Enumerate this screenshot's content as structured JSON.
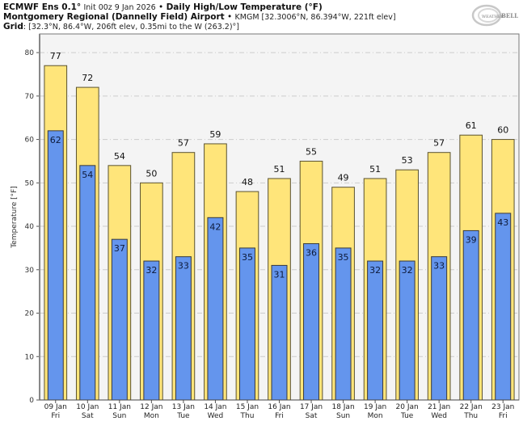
{
  "header": {
    "model": "ECMWF Ens 0.1°",
    "init": "Init 00z 9 Jan 2026",
    "sep": " • ",
    "product": "Daily High/Low Temperature (°F)",
    "station": "Montgomery Regional (Dannelly Field) Airport",
    "station_info": "KMGM [32.3006°N, 86.394°W, 221ft elev]",
    "grid_label": "Grid",
    "grid_info": ": [32.3°N, 86.4°W, 206ft elev, 0.35mi to the W (263.2)°]"
  },
  "logo": {
    "text": "WeatherBELL",
    "icon": "weatherbell-logo-icon"
  },
  "colors": {
    "high_fill": "#ffe57a",
    "low_fill": "#6495ed",
    "bar_stroke": "#5a5230",
    "plot_bg": "#f4f4f4",
    "grid": "#cccccc"
  },
  "chart_data": {
    "type": "bar",
    "title": "Daily High/Low Temperature (°F)",
    "xlabel": "",
    "ylabel": "Temperature [°F]",
    "ylim": [
      0,
      84.3
    ],
    "yticks": [
      0,
      10,
      20,
      30,
      40,
      50,
      60,
      70,
      80
    ],
    "grid": true,
    "categories": [
      {
        "date": "09 Jan",
        "day": "Fri"
      },
      {
        "date": "10 Jan",
        "day": "Sat"
      },
      {
        "date": "11 Jan",
        "day": "Sun"
      },
      {
        "date": "12 Jan",
        "day": "Mon"
      },
      {
        "date": "13 Jan",
        "day": "Tue"
      },
      {
        "date": "14 Jan",
        "day": "Wed"
      },
      {
        "date": "15 Jan",
        "day": "Thu"
      },
      {
        "date": "16 Jan",
        "day": "Fri"
      },
      {
        "date": "17 Jan",
        "day": "Sat"
      },
      {
        "date": "18 Jan",
        "day": "Sun"
      },
      {
        "date": "19 Jan",
        "day": "Mon"
      },
      {
        "date": "20 Jan",
        "day": "Tue"
      },
      {
        "date": "21 Jan",
        "day": "Wed"
      },
      {
        "date": "22 Jan",
        "day": "Thu"
      },
      {
        "date": "23 Jan",
        "day": "Fri"
      }
    ],
    "series": [
      {
        "name": "High",
        "values": [
          77,
          72,
          54,
          50,
          57,
          59,
          48,
          51,
          55,
          49,
          51,
          53,
          57,
          61,
          60
        ]
      },
      {
        "name": "Low",
        "values": [
          62,
          54,
          37,
          32,
          33,
          42,
          35,
          31,
          36,
          35,
          32,
          32,
          33,
          39,
          43
        ]
      }
    ]
  }
}
